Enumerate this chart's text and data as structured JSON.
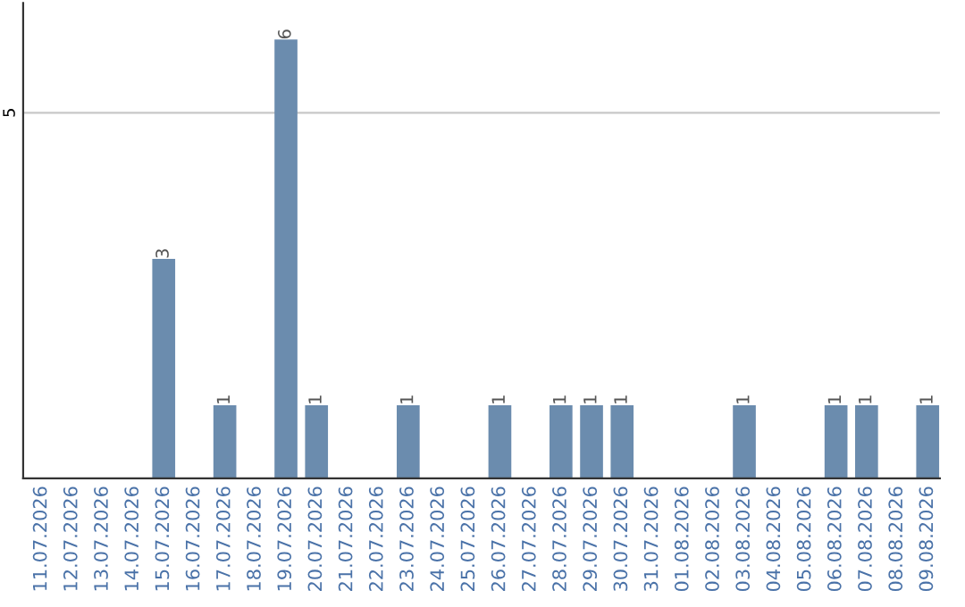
{
  "chart_data": {
    "type": "bar",
    "categories": [
      "11.07.2026",
      "12.07.2026",
      "13.07.2026",
      "14.07.2026",
      "15.07.2026",
      "16.07.2026",
      "17.07.2026",
      "18.07.2026",
      "19.07.2026",
      "20.07.2026",
      "21.07.2026",
      "22.07.2026",
      "23.07.2026",
      "24.07.2026",
      "25.07.2026",
      "26.07.2026",
      "27.07.2026",
      "28.07.2026",
      "29.07.2026",
      "30.07.2026",
      "31.07.2026",
      "01.08.2026",
      "02.08.2026",
      "03.08.2026",
      "04.08.2026",
      "05.08.2026",
      "06.08.2026",
      "07.08.2026",
      "08.08.2026",
      "09.08.2026"
    ],
    "values": [
      0,
      0,
      0,
      0,
      3,
      0,
      1,
      0,
      6,
      1,
      0,
      0,
      1,
      0,
      0,
      1,
      0,
      1,
      1,
      1,
      0,
      0,
      0,
      1,
      0,
      0,
      1,
      1,
      0,
      1
    ],
    "value_labels": [
      null,
      null,
      null,
      null,
      "3",
      null,
      "1",
      null,
      "6",
      "1",
      null,
      null,
      "1",
      null,
      null,
      "1",
      null,
      "1",
      "1",
      "1",
      null,
      null,
      null,
      "1",
      null,
      null,
      "1",
      "1",
      null,
      "1"
    ],
    "color": "#6b8cae",
    "ylim": [
      0,
      6.5
    ],
    "yticks": [
      5
    ],
    "grid": "y"
  }
}
